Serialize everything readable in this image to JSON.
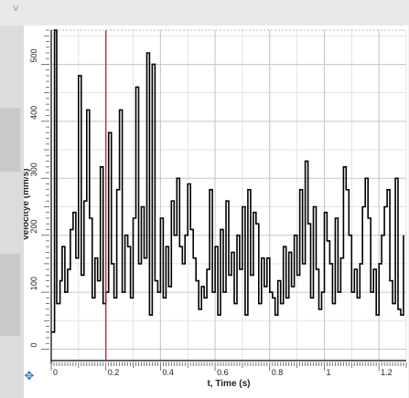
{
  "window": {
    "collapse_glyph": "v"
  },
  "chart_data": {
    "type": "line",
    "xlabel": "t, Time (s)",
    "ylabel": "Velocitye (mm/s)",
    "xlim": [
      0,
      1.3
    ],
    "ylim": [
      -20,
      560
    ],
    "grid": true,
    "x_ticks": [
      0,
      0.2,
      0.4,
      0.6,
      0.8,
      1,
      1.2
    ],
    "x_tick_labels": [
      "0",
      "0.2",
      "0.4",
      "0.6",
      "0.8",
      "1",
      "1.2"
    ],
    "y_ticks": [
      0,
      100,
      200,
      300,
      400,
      500
    ],
    "y_tick_labels": [
      "0",
      "100",
      "200",
      "300",
      "400",
      "500"
    ],
    "cursor_x": 0.2,
    "series": [
      {
        "color": "#000000",
        "x": [
          0.0,
          0.012,
          0.02,
          0.032,
          0.04,
          0.05,
          0.06,
          0.07,
          0.08,
          0.09,
          0.1,
          0.11,
          0.12,
          0.13,
          0.14,
          0.15,
          0.16,
          0.17,
          0.18,
          0.19,
          0.2,
          0.21,
          0.22,
          0.23,
          0.24,
          0.25,
          0.26,
          0.27,
          0.28,
          0.29,
          0.3,
          0.31,
          0.32,
          0.33,
          0.34,
          0.35,
          0.36,
          0.37,
          0.38,
          0.39,
          0.4,
          0.41,
          0.42,
          0.43,
          0.44,
          0.45,
          0.46,
          0.47,
          0.48,
          0.49,
          0.5,
          0.51,
          0.52,
          0.53,
          0.54,
          0.55,
          0.56,
          0.57,
          0.58,
          0.59,
          0.6,
          0.61,
          0.62,
          0.63,
          0.64,
          0.65,
          0.66,
          0.67,
          0.68,
          0.69,
          0.7,
          0.71,
          0.72,
          0.73,
          0.74,
          0.75,
          0.76,
          0.77,
          0.78,
          0.79,
          0.8,
          0.81,
          0.82,
          0.83,
          0.84,
          0.85,
          0.86,
          0.87,
          0.88,
          0.89,
          0.9,
          0.91,
          0.92,
          0.93,
          0.94,
          0.95,
          0.96,
          0.97,
          0.98,
          0.99,
          1.0,
          1.01,
          1.02,
          1.03,
          1.04,
          1.05,
          1.06,
          1.07,
          1.08,
          1.09,
          1.1,
          1.11,
          1.12,
          1.13,
          1.14,
          1.15,
          1.16,
          1.17,
          1.18,
          1.19,
          1.2,
          1.21,
          1.22,
          1.23,
          1.24,
          1.25,
          1.26,
          1.27,
          1.28,
          1.29
        ],
        "y": [
          30,
          560,
          80,
          120,
          180,
          100,
          140,
          210,
          240,
          160,
          480,
          130,
          260,
          420,
          230,
          90,
          160,
          120,
          320,
          80,
          100,
          380,
          150,
          90,
          280,
          420,
          100,
          200,
          180,
          90,
          230,
          460,
          150,
          250,
          160,
          520,
          60,
          500,
          120,
          100,
          230,
          90,
          180,
          110,
          260,
          200,
          300,
          180,
          150,
          200,
          290,
          210,
          160,
          120,
          70,
          110,
          90,
          140,
          280,
          100,
          180,
          60,
          210,
          100,
          260,
          130,
          170,
          80,
          200,
          140,
          250,
          60,
          280,
          130,
          240,
          220,
          80,
          160,
          110,
          160,
          100,
          90,
          60,
          120,
          80,
          180,
          90,
          170,
          110,
          200,
          130,
          280,
          150,
          330,
          220,
          90,
          250,
          140,
          70,
          100,
          240,
          190,
          150,
          80,
          230,
          100,
          160,
          320,
          280,
          200,
          100,
          140,
          90,
          150,
          250,
          300,
          230,
          100,
          140,
          60,
          150,
          200,
          250,
          280,
          120,
          80,
          300,
          70,
          60,
          200
        ]
      }
    ]
  }
}
